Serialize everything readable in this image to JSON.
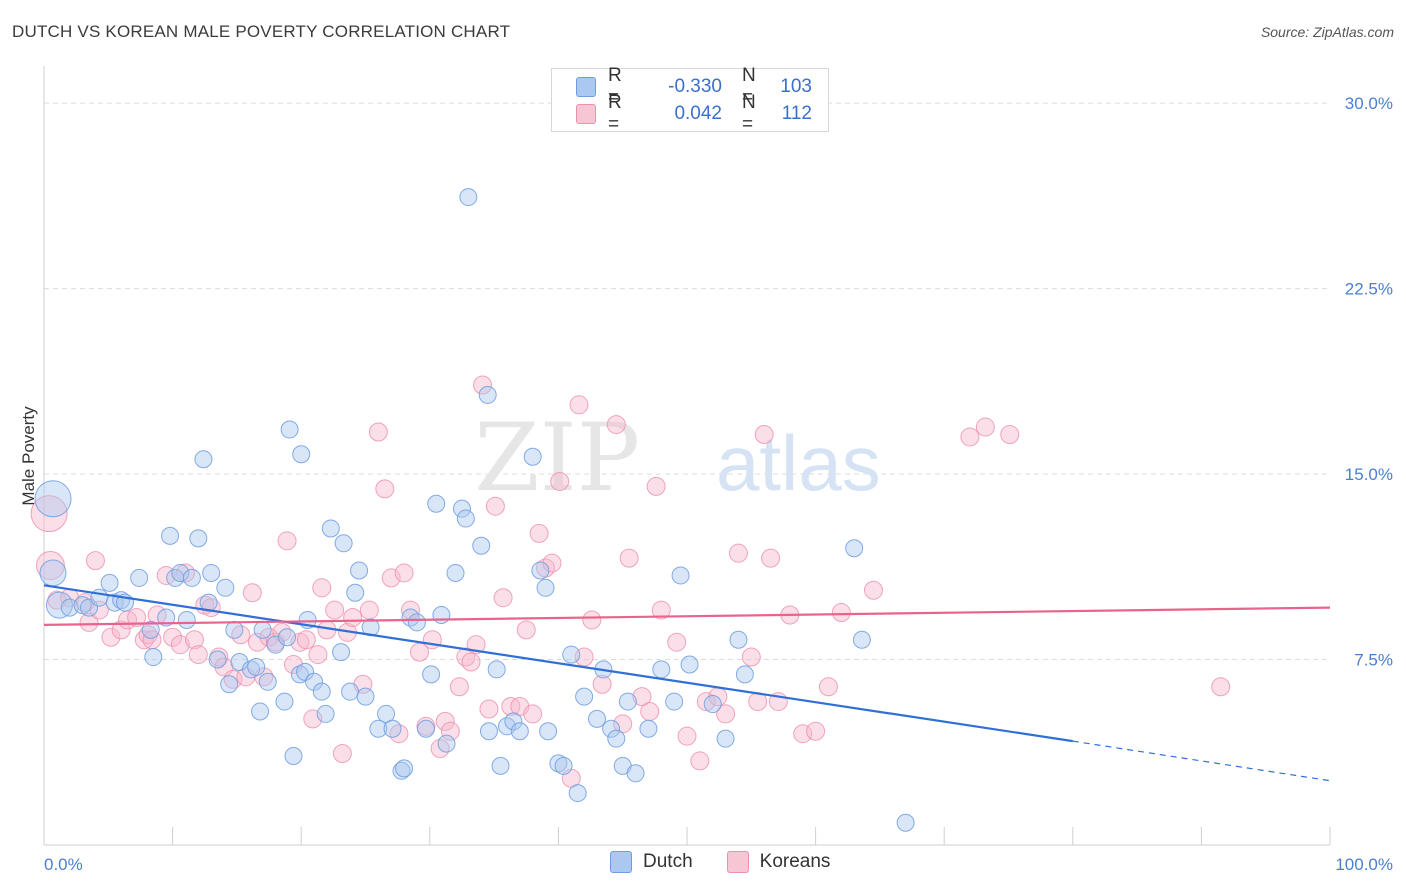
{
  "header": {
    "title": "DUTCH VS KOREAN MALE POVERTY CORRELATION CHART",
    "source": "Source: ZipAtlas.com"
  },
  "legend": {
    "rows": [
      {
        "r_label": "R =",
        "r_value": "-0.330",
        "n_label": "N =",
        "n_value": "103"
      },
      {
        "r_label": "R =",
        "r_value": "0.042",
        "n_label": "N =",
        "n_value": "112"
      }
    ]
  },
  "bottom_legend": {
    "dutch": "Dutch",
    "koreans": "Koreans"
  },
  "colors": {
    "dutch_fill": "#aac8f0",
    "dutch_stroke": "#6e9de0",
    "dutch_line": "#2f6fd6",
    "korean_fill": "#f7b9cb",
    "korean_stroke": "#ee8fab",
    "korean_line": "#e8648c"
  },
  "chart_data": {
    "type": "scatter",
    "title": "DUTCH VS KOREAN MALE POVERTY CORRELATION CHART",
    "xlabel": "",
    "ylabel": "Male Poverty",
    "xlim": [
      0,
      100
    ],
    "ylim": [
      0,
      31.5
    ],
    "x_tick_labels": [
      "0.0%",
      "100.0%"
    ],
    "y_ticks": [
      {
        "value": 7.5,
        "label": "7.5%"
      },
      {
        "value": 15.0,
        "label": "15.0%"
      },
      {
        "value": 22.5,
        "label": "22.5%"
      },
      {
        "value": 30.0,
        "label": "30.0%"
      }
    ],
    "grid": true,
    "watermark": "ZIPatlas",
    "series": [
      {
        "name": "Dutch",
        "r": -0.33,
        "n": 103,
        "trend": {
          "x0": 0,
          "y0": 10.5,
          "x1": 80,
          "y1": 4.2,
          "dashed_to_x": 100,
          "dashed_to_y": 2.6
        },
        "points": [
          [
            0.7,
            14.0
          ],
          [
            0.7,
            11.0
          ],
          [
            1.2,
            9.7
          ],
          [
            2.0,
            9.6
          ],
          [
            3.0,
            9.7
          ],
          [
            3.5,
            9.6
          ],
          [
            4.3,
            10.0
          ],
          [
            5.1,
            10.6
          ],
          [
            5.5,
            9.8
          ],
          [
            6.0,
            9.9
          ],
          [
            6.3,
            9.8
          ],
          [
            7.4,
            10.8
          ],
          [
            8.3,
            8.7
          ],
          [
            8.5,
            7.6
          ],
          [
            9.5,
            9.2
          ],
          [
            9.8,
            12.5
          ],
          [
            10.2,
            10.8
          ],
          [
            10.6,
            11.0
          ],
          [
            11.1,
            9.1
          ],
          [
            11.5,
            10.8
          ],
          [
            12.0,
            12.4
          ],
          [
            12.8,
            9.8
          ],
          [
            12.4,
            15.6
          ],
          [
            13.0,
            11.0
          ],
          [
            13.5,
            7.5
          ],
          [
            14.1,
            10.4
          ],
          [
            14.4,
            6.5
          ],
          [
            14.8,
            8.7
          ],
          [
            15.2,
            7.4
          ],
          [
            16.1,
            7.1
          ],
          [
            16.5,
            7.2
          ],
          [
            16.8,
            5.4
          ],
          [
            17.0,
            8.7
          ],
          [
            17.4,
            6.6
          ],
          [
            18.0,
            8.1
          ],
          [
            18.7,
            5.8
          ],
          [
            18.9,
            8.4
          ],
          [
            19.1,
            16.8
          ],
          [
            19.4,
            3.6
          ],
          [
            19.9,
            6.9
          ],
          [
            20.0,
            15.8
          ],
          [
            20.3,
            7.0
          ],
          [
            20.5,
            9.1
          ],
          [
            21.0,
            6.6
          ],
          [
            21.6,
            6.2
          ],
          [
            21.9,
            5.3
          ],
          [
            22.3,
            12.8
          ],
          [
            23.1,
            7.8
          ],
          [
            23.3,
            12.2
          ],
          [
            23.8,
            6.2
          ],
          [
            24.2,
            10.2
          ],
          [
            24.5,
            11.1
          ],
          [
            25.0,
            6.0
          ],
          [
            25.4,
            8.8
          ],
          [
            26.0,
            4.7
          ],
          [
            26.6,
            5.3
          ],
          [
            27.1,
            4.7
          ],
          [
            27.8,
            3.0
          ],
          [
            28.0,
            3.1
          ],
          [
            28.5,
            9.2
          ],
          [
            29.0,
            9.0
          ],
          [
            29.7,
            4.7
          ],
          [
            30.1,
            6.9
          ],
          [
            30.5,
            13.8
          ],
          [
            30.9,
            9.3
          ],
          [
            31.3,
            4.1
          ],
          [
            32.0,
            11.0
          ],
          [
            32.5,
            13.6
          ],
          [
            32.8,
            13.2
          ],
          [
            33.0,
            26.2
          ],
          [
            34.0,
            12.1
          ],
          [
            34.5,
            18.2
          ],
          [
            34.6,
            4.6
          ],
          [
            35.2,
            7.1
          ],
          [
            35.5,
            3.2
          ],
          [
            36.0,
            4.8
          ],
          [
            36.5,
            5.0
          ],
          [
            37.0,
            4.6
          ],
          [
            38.0,
            15.7
          ],
          [
            38.6,
            11.1
          ],
          [
            39.0,
            10.4
          ],
          [
            39.2,
            4.6
          ],
          [
            40.0,
            3.3
          ],
          [
            40.4,
            3.2
          ],
          [
            41.0,
            7.7
          ],
          [
            41.5,
            2.1
          ],
          [
            42.0,
            6.0
          ],
          [
            43.0,
            5.1
          ],
          [
            43.5,
            7.1
          ],
          [
            44.1,
            4.7
          ],
          [
            44.5,
            4.3
          ],
          [
            45.0,
            3.2
          ],
          [
            45.4,
            5.8
          ],
          [
            46.0,
            2.9
          ],
          [
            47.0,
            4.7
          ],
          [
            48.0,
            7.1
          ],
          [
            49.0,
            5.8
          ],
          [
            49.5,
            10.9
          ],
          [
            50.2,
            7.3
          ],
          [
            52.0,
            5.7
          ],
          [
            53.0,
            4.3
          ],
          [
            54.0,
            8.3
          ],
          [
            54.5,
            6.9
          ],
          [
            63.0,
            12.0
          ],
          [
            63.6,
            8.3
          ],
          [
            67.0,
            0.9
          ]
        ]
      },
      {
        "name": "Koreans",
        "r": 0.042,
        "n": 112,
        "trend": {
          "x0": 0,
          "y0": 8.9,
          "x1": 100,
          "y1": 9.6
        },
        "points": [
          [
            0.4,
            13.4
          ],
          [
            0.5,
            11.3
          ],
          [
            1.0,
            9.9
          ],
          [
            2.0,
            10.0
          ],
          [
            3.2,
            9.8
          ],
          [
            3.5,
            9.0
          ],
          [
            4.0,
            11.5
          ],
          [
            4.3,
            9.5
          ],
          [
            5.2,
            8.4
          ],
          [
            6.0,
            8.7
          ],
          [
            6.5,
            9.1
          ],
          [
            7.2,
            9.2
          ],
          [
            7.8,
            8.3
          ],
          [
            8.1,
            8.5
          ],
          [
            8.4,
            8.3
          ],
          [
            8.8,
            9.3
          ],
          [
            9.5,
            10.9
          ],
          [
            10.0,
            8.4
          ],
          [
            10.6,
            8.1
          ],
          [
            11.0,
            11.0
          ],
          [
            11.7,
            8.3
          ],
          [
            12.0,
            7.7
          ],
          [
            12.5,
            9.7
          ],
          [
            13.0,
            9.6
          ],
          [
            13.6,
            7.6
          ],
          [
            14.0,
            7.2
          ],
          [
            14.7,
            6.7
          ],
          [
            15.3,
            8.5
          ],
          [
            15.7,
            6.8
          ],
          [
            16.2,
            10.2
          ],
          [
            16.6,
            8.2
          ],
          [
            17.1,
            6.8
          ],
          [
            17.5,
            8.4
          ],
          [
            18.0,
            8.2
          ],
          [
            18.5,
            8.6
          ],
          [
            18.9,
            12.3
          ],
          [
            19.4,
            7.3
          ],
          [
            19.9,
            8.2
          ],
          [
            20.4,
            8.3
          ],
          [
            20.9,
            5.1
          ],
          [
            21.3,
            7.7
          ],
          [
            21.6,
            10.4
          ],
          [
            22.0,
            8.7
          ],
          [
            22.6,
            9.5
          ],
          [
            23.2,
            3.7
          ],
          [
            23.6,
            8.6
          ],
          [
            24.0,
            9.2
          ],
          [
            24.8,
            6.5
          ],
          [
            25.3,
            9.5
          ],
          [
            26.0,
            16.7
          ],
          [
            26.5,
            14.4
          ],
          [
            27.0,
            10.8
          ],
          [
            27.6,
            4.5
          ],
          [
            28.0,
            11.0
          ],
          [
            28.5,
            9.5
          ],
          [
            29.2,
            7.8
          ],
          [
            29.7,
            4.8
          ],
          [
            30.2,
            8.3
          ],
          [
            30.8,
            3.9
          ],
          [
            31.2,
            5.0
          ],
          [
            31.6,
            4.6
          ],
          [
            32.3,
            6.4
          ],
          [
            32.8,
            7.6
          ],
          [
            33.2,
            7.4
          ],
          [
            33.6,
            8.1
          ],
          [
            34.1,
            18.6
          ],
          [
            34.6,
            5.5
          ],
          [
            35.1,
            13.7
          ],
          [
            35.7,
            10.0
          ],
          [
            36.3,
            5.6
          ],
          [
            37.0,
            5.6
          ],
          [
            37.5,
            8.7
          ],
          [
            38.0,
            5.3
          ],
          [
            38.5,
            12.6
          ],
          [
            39.0,
            11.2
          ],
          [
            39.5,
            11.4
          ],
          [
            40.1,
            14.7
          ],
          [
            41.0,
            2.7
          ],
          [
            41.6,
            17.8
          ],
          [
            42.0,
            7.6
          ],
          [
            42.6,
            9.1
          ],
          [
            43.4,
            6.5
          ],
          [
            44.5,
            17.0
          ],
          [
            45.0,
            4.9
          ],
          [
            45.5,
            11.6
          ],
          [
            46.5,
            6.0
          ],
          [
            47.1,
            5.4
          ],
          [
            47.6,
            14.5
          ],
          [
            48.0,
            9.5
          ],
          [
            49.2,
            8.2
          ],
          [
            50.0,
            4.4
          ],
          [
            51.0,
            3.4
          ],
          [
            51.5,
            5.8
          ],
          [
            52.4,
            6.0
          ],
          [
            53.0,
            5.3
          ],
          [
            54.0,
            11.8
          ],
          [
            55.0,
            7.6
          ],
          [
            55.5,
            5.8
          ],
          [
            56.0,
            16.6
          ],
          [
            56.5,
            11.6
          ],
          [
            57.1,
            5.8
          ],
          [
            58.0,
            9.3
          ],
          [
            59.0,
            4.5
          ],
          [
            60.0,
            4.6
          ],
          [
            61.0,
            6.4
          ],
          [
            62.0,
            9.4
          ],
          [
            64.5,
            10.3
          ],
          [
            72.0,
            16.5
          ],
          [
            73.2,
            16.9
          ],
          [
            75.1,
            16.6
          ],
          [
            91.5,
            6.4
          ]
        ]
      }
    ]
  }
}
